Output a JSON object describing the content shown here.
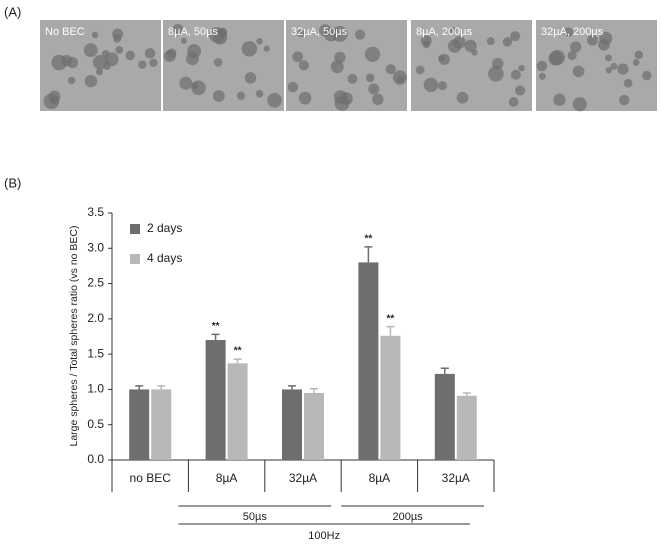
{
  "panel_a": {
    "label": "(A)",
    "images": [
      "No BEC",
      "8µA, 50µs",
      "32µA, 50µs",
      "8µA, 200µs",
      "32µA, 200µs"
    ]
  },
  "panel_b_label": "(B)",
  "chart_data": {
    "type": "bar",
    "y_label": "Large spheres / Total spheres ratio (vs no BEC)",
    "categories": [
      "no BEC",
      "8µA",
      "32µA",
      "8µA",
      "32µA"
    ],
    "series": [
      {
        "name": "2 days",
        "color": "#6e6e6e",
        "values": [
          1.0,
          1.7,
          1.0,
          2.8,
          1.22
        ],
        "errors": [
          0.05,
          0.08,
          0.05,
          0.22,
          0.08
        ],
        "markers": [
          null,
          "**",
          null,
          "**",
          null
        ]
      },
      {
        "name": "4 days",
        "color": "#b8b8b8",
        "values": [
          1.0,
          1.37,
          0.95,
          1.76,
          0.91
        ],
        "errors": [
          0.05,
          0.06,
          0.06,
          0.13,
          0.04
        ],
        "markers": [
          null,
          "**",
          null,
          "**",
          null
        ]
      }
    ],
    "groups": [
      "50µs",
      "200µs"
    ],
    "outer_group": "100Hz",
    "ylim": [
      0,
      3.5
    ],
    "yticks": [
      {
        "value": 0,
        "label": "0.0"
      },
      0.5,
      {
        "value": 1,
        "label": "1.0"
      },
      1.5,
      {
        "value": 2,
        "label": "2.0"
      },
      2.5,
      {
        "value": 3,
        "label": "3.0"
      },
      3.5
    ],
    "legend": "upper-left"
  }
}
